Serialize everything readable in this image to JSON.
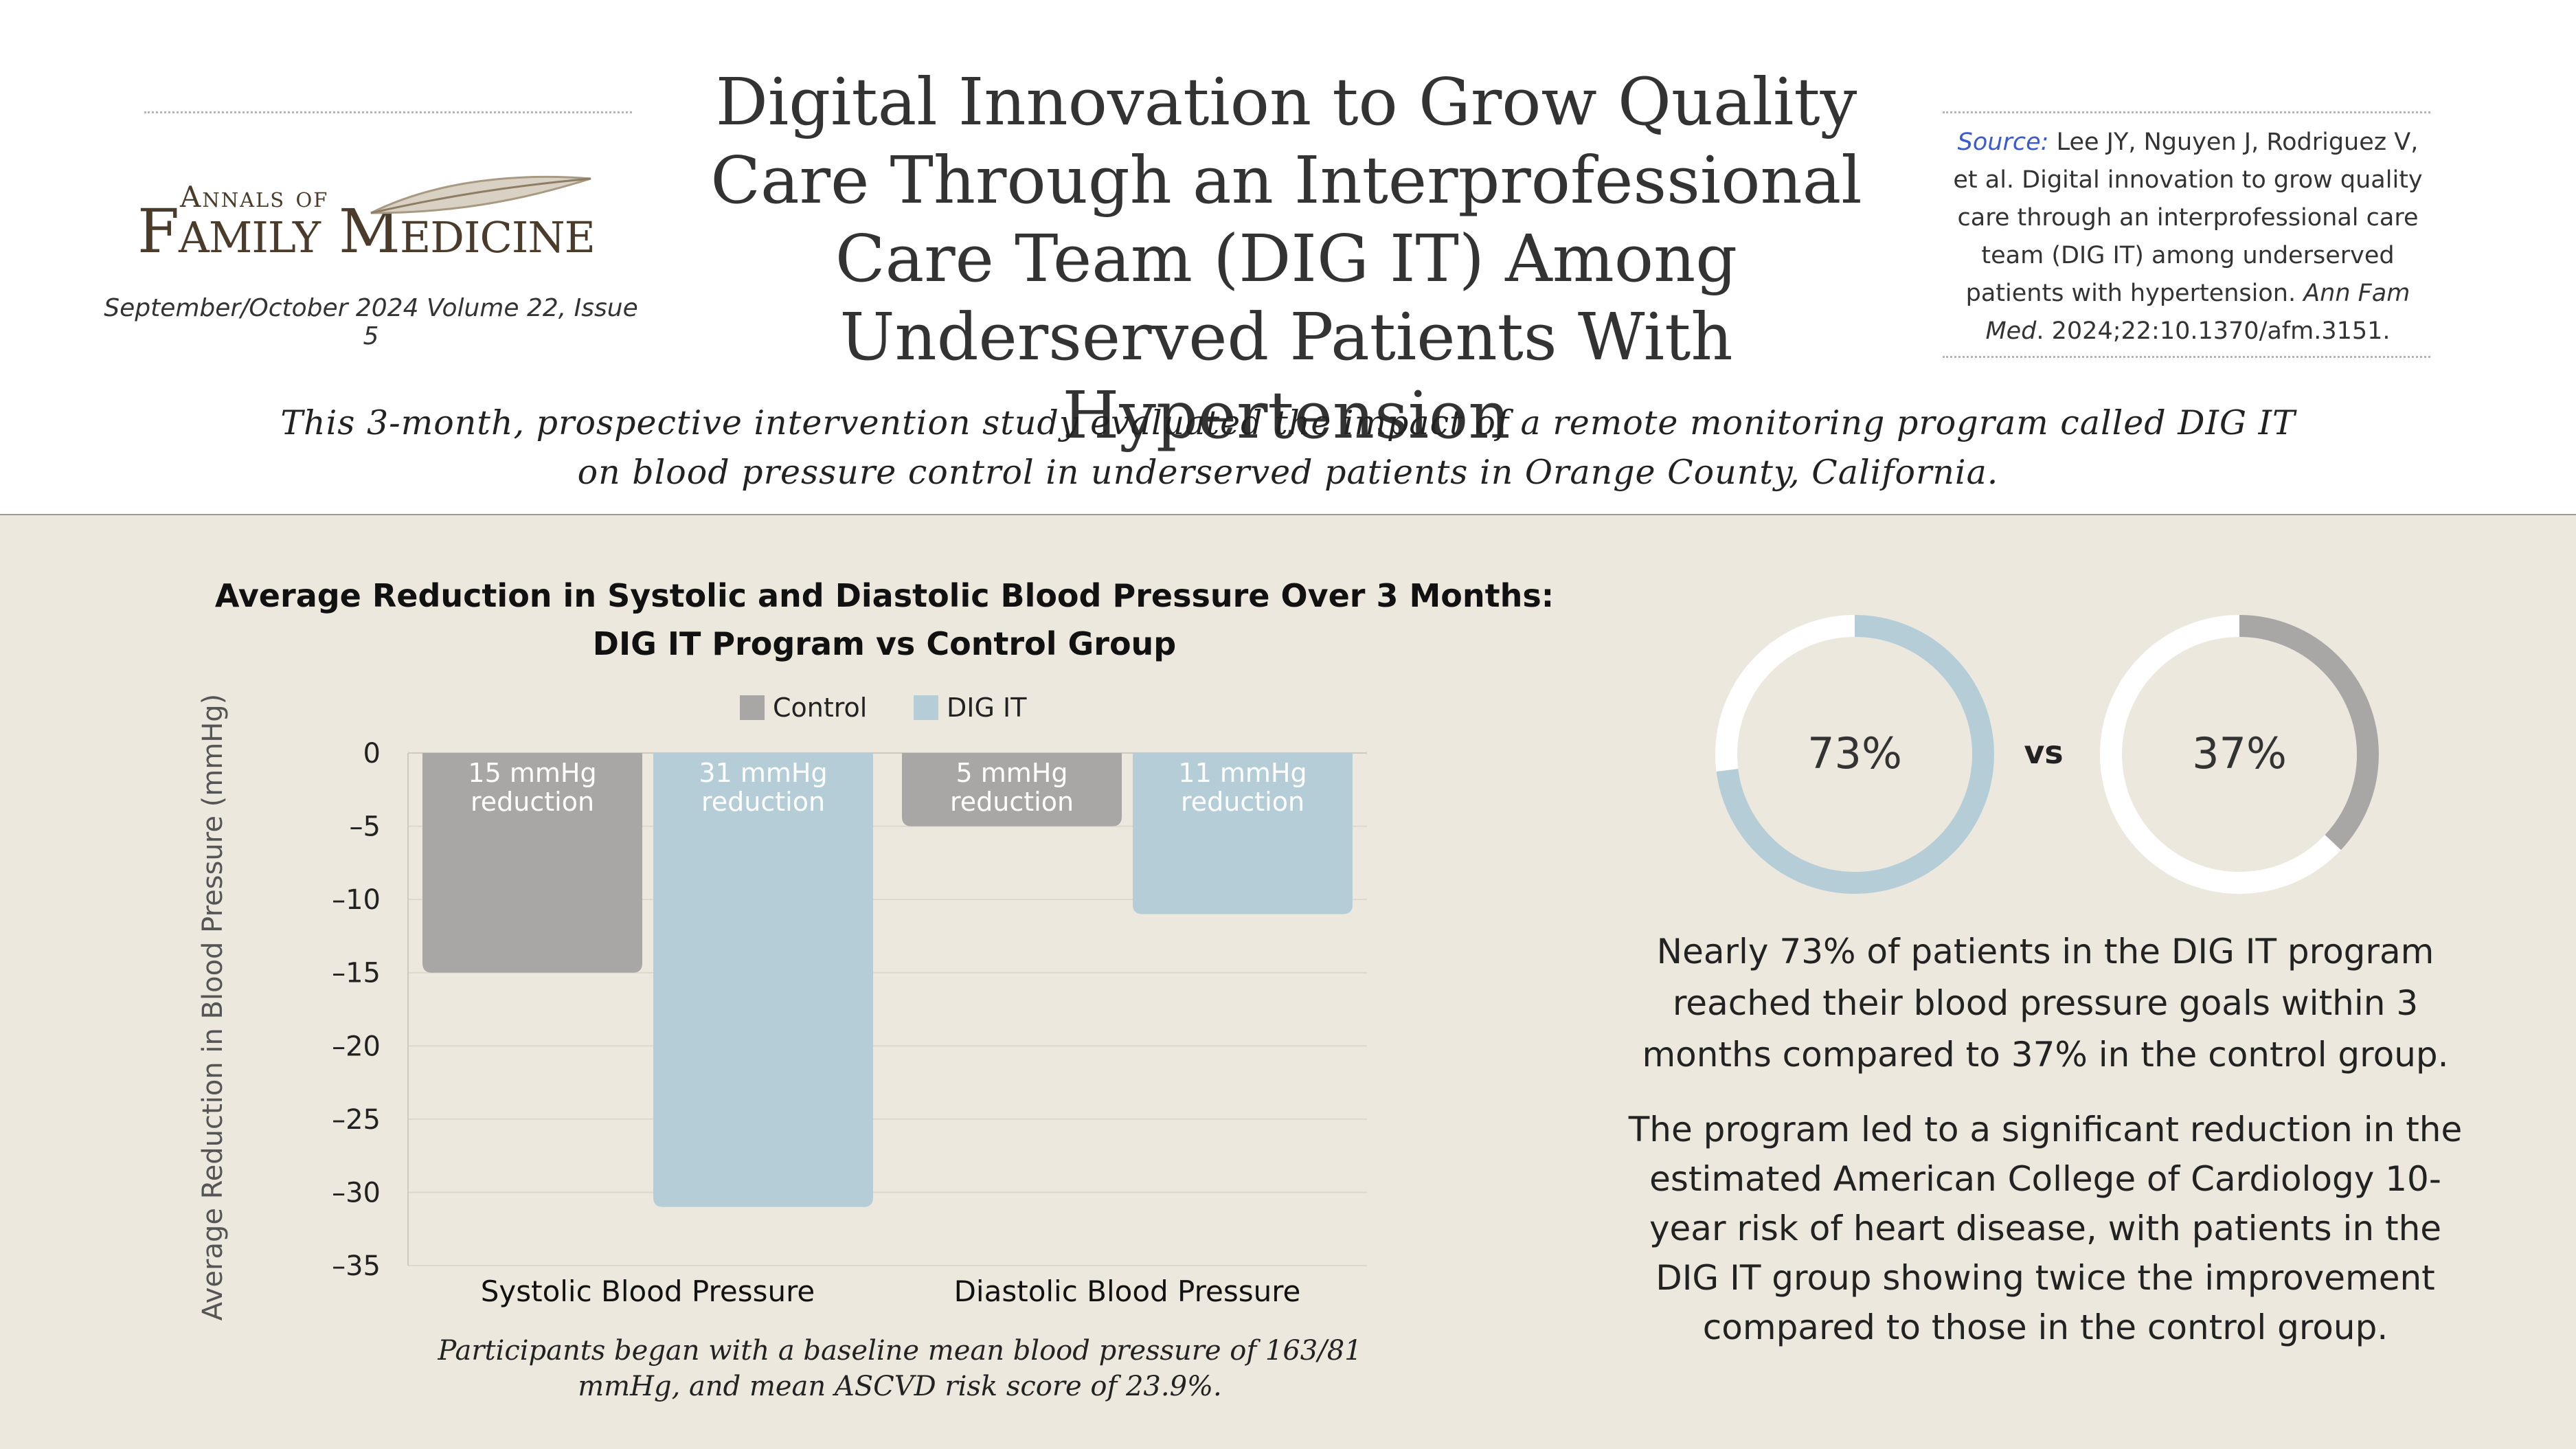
{
  "journal": {
    "logo_line1": "Annals of",
    "logo_line2": "Family Medicine",
    "issue": "September/October 2024 Volume 22, Issue 5"
  },
  "title": "Digital Innovation to Grow Quality Care Through an Interprofessional Care Team (DIG IT) Among Underserved Patients With Hypertension",
  "source": {
    "label": "Source:",
    "text1": "Lee JY, Nguyen J, Rodriguez V, et al. Digital innovation to grow quality care through an interprofessional care team (DIG IT) among underserved patients with hypertension.",
    "journal": "Ann Fam Med",
    "text2": ". 2024;22:10.1370/afm.3151."
  },
  "summary": "This 3-month, prospective intervention study evaluated the impact of a remote monitoring program called DIG IT on blood pressure control in underserved patients in Orange County, California.",
  "chart_data": {
    "type": "bar",
    "title": "Average Reduction in Systolic and Diastolic Blood Pressure Over 3 Months: DIG IT Program vs Control Group",
    "xlabel": "",
    "ylabel": "Average Reduction in Blood Pressure (mmHg)",
    "categories": [
      "Systolic Blood Pressure",
      "Diastolic Blood Pressure"
    ],
    "series": [
      {
        "name": "Control",
        "values": [
          -15,
          -5
        ],
        "color": "#a8a7a5",
        "labels": [
          "15 mmHg reduction",
          "5 mmHg reduction"
        ]
      },
      {
        "name": "DIG IT",
        "values": [
          -31,
          -11
        ],
        "color": "#b5cdd7",
        "labels": [
          "31 mmHg reduction",
          "11 mmHg reduction"
        ]
      }
    ],
    "ylim": [
      -35,
      0
    ],
    "yticks": [
      0,
      -5,
      -10,
      -15,
      -20,
      -25,
      -30,
      -35
    ],
    "ytick_labels": [
      "0",
      "–5",
      "–10",
      "–15",
      "–20",
      "–25",
      "–30",
      "–35"
    ],
    "grid": true,
    "legend": "top-center"
  },
  "chart_note": "Participants began with a baseline mean blood pressure of 163/81 mmHg, and mean ASCVD risk score of 23.9%.",
  "goal_comparison": {
    "dig_it": {
      "value": 73,
      "label": "73%",
      "color": "#b5cdd7"
    },
    "vs": "vs",
    "control": {
      "value": 37,
      "label": "37%",
      "color": "#a8a7a5"
    }
  },
  "findings": [
    "Nearly 73% of patients in the DIG IT program reached their blood pressure goals within 3 months compared to 37% in the control group.",
    "The program led to a significant reduction in the estimated American College of Cardiology 10-year risk of heart disease, with patients in the DIG IT group showing twice the improvement compared to those in the control group."
  ]
}
